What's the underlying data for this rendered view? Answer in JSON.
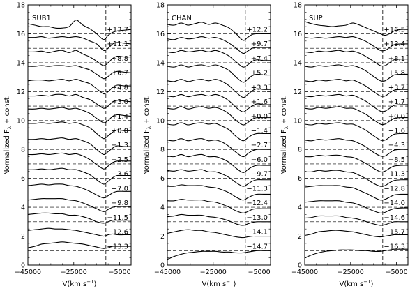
{
  "chart_data": [
    {
      "type": "line",
      "panel_label": "SUB1",
      "xlabel_prefix": "V(km s",
      "xlabel_exp": "−1",
      "xlabel_suffix": ")",
      "ylabel_main": "Normalized F",
      "ylabel_sub": "λ",
      "ylabel_suffix": " + const.",
      "xlim": [
        -45000,
        0
      ],
      "ylim": [
        0,
        18
      ],
      "x_ticks": [
        -45000,
        -25000,
        -5000
      ],
      "x_tick_labels": [
        "−45000",
        "−25000",
        "−5000"
      ],
      "y_ticks": [
        0,
        2,
        4,
        6,
        8,
        10,
        12,
        14,
        16,
        18
      ],
      "y_tick_labels": [
        "0",
        "2",
        "4",
        "6",
        "8",
        "10",
        "12",
        "14",
        "16",
        "18"
      ],
      "vertical_dashed_line_x": -11000,
      "offsets": [
        16,
        15,
        14,
        13,
        12,
        11,
        10,
        9,
        8,
        7,
        6,
        5,
        4,
        3,
        2,
        1
      ],
      "epochs": [
        "+13.7",
        "+11.1",
        "+8.8",
        "+6.7",
        "+4.8",
        "+3.0",
        "+1.4",
        "+0.0",
        "−1.3",
        "−2.5",
        "−3.6",
        "−7.0",
        "−9.8",
        "−11.5",
        "−12.6",
        "−13.3"
      ],
      "x": [
        -45000,
        -42000,
        -39000,
        -36000,
        -33000,
        -30000,
        -27000,
        -24000,
        -21000,
        -18000,
        -15000,
        -12000,
        -10000,
        -8000,
        -6000,
        -3000,
        0
      ],
      "series_values": [
        [
          16.7,
          16.6,
          16.5,
          16.5,
          16.4,
          16.4,
          16.5,
          16.95,
          16.6,
          16.35,
          16.0,
          15.6,
          15.9,
          16.1,
          16.2,
          16.25,
          16.3
        ],
        [
          15.75,
          15.75,
          15.8,
          15.7,
          15.75,
          15.8,
          15.75,
          15.8,
          15.7,
          15.5,
          15.3,
          14.85,
          15.0,
          15.3,
          15.4,
          15.35,
          15.3
        ],
        [
          14.75,
          14.75,
          14.8,
          14.7,
          14.8,
          14.85,
          14.7,
          14.85,
          14.6,
          14.4,
          14.1,
          13.8,
          14.0,
          14.3,
          14.45,
          14.4,
          14.4
        ],
        [
          13.75,
          13.75,
          13.8,
          13.75,
          13.8,
          13.8,
          13.75,
          13.8,
          13.65,
          13.5,
          13.2,
          12.9,
          13.05,
          13.3,
          13.4,
          13.35,
          13.3
        ],
        [
          12.75,
          12.8,
          12.8,
          12.75,
          12.8,
          12.85,
          12.75,
          12.85,
          12.7,
          12.55,
          12.2,
          11.85,
          12.0,
          12.3,
          12.45,
          12.4,
          12.4
        ],
        [
          11.7,
          11.7,
          11.75,
          11.7,
          11.8,
          11.8,
          11.7,
          11.8,
          11.6,
          11.45,
          11.15,
          10.85,
          11.0,
          11.3,
          11.4,
          11.35,
          11.3
        ],
        [
          10.8,
          10.8,
          10.85,
          10.8,
          10.85,
          10.9,
          10.8,
          10.85,
          10.7,
          10.5,
          10.15,
          9.85,
          10.0,
          10.3,
          10.4,
          10.35,
          10.3
        ],
        [
          9.8,
          9.8,
          9.85,
          9.8,
          9.85,
          9.9,
          9.8,
          9.85,
          9.7,
          9.5,
          9.1,
          8.75,
          8.95,
          9.2,
          9.35,
          9.3,
          9.3
        ],
        [
          8.7,
          8.7,
          8.75,
          8.7,
          8.75,
          8.8,
          8.7,
          8.75,
          8.6,
          8.4,
          8.0,
          7.65,
          7.85,
          8.1,
          8.25,
          8.2,
          8.2
        ],
        [
          7.65,
          7.65,
          7.7,
          7.65,
          7.7,
          7.75,
          7.65,
          7.7,
          7.55,
          7.3,
          6.95,
          6.65,
          6.85,
          7.1,
          7.2,
          7.2,
          7.2
        ],
        [
          6.6,
          6.6,
          6.65,
          6.6,
          6.65,
          6.7,
          6.6,
          6.6,
          6.45,
          6.25,
          5.9,
          5.6,
          5.8,
          6.05,
          6.2,
          6.2,
          6.2
        ],
        [
          5.5,
          5.55,
          5.6,
          5.55,
          5.6,
          5.6,
          5.5,
          5.45,
          5.3,
          5.1,
          4.85,
          4.65,
          4.8,
          5.0,
          5.1,
          5.1,
          5.1
        ],
        [
          4.5,
          4.55,
          4.6,
          4.6,
          4.6,
          4.6,
          4.5,
          4.45,
          4.3,
          4.1,
          3.9,
          3.7,
          3.85,
          4.0,
          4.05,
          4.05,
          4.05
        ],
        [
          3.5,
          3.55,
          3.6,
          3.6,
          3.55,
          3.55,
          3.45,
          3.45,
          3.35,
          3.2,
          3.0,
          2.9,
          3.0,
          3.1,
          3.1,
          3.1,
          3.1
        ],
        [
          2.4,
          2.45,
          2.5,
          2.55,
          2.5,
          2.5,
          2.45,
          2.4,
          2.3,
          2.2,
          2.1,
          2.0,
          2.1,
          2.15,
          2.1,
          2.1,
          2.1
        ],
        [
          1.2,
          1.3,
          1.45,
          1.5,
          1.55,
          1.6,
          1.55,
          1.5,
          1.45,
          1.35,
          1.25,
          1.15,
          1.2,
          1.3,
          1.3,
          1.3,
          1.3
        ]
      ]
    },
    {
      "type": "line",
      "panel_label": "CHAN",
      "xlabel_prefix": "V(km s",
      "xlabel_exp": "−1",
      "xlabel_suffix": ")",
      "ylabel_main": "Normalized F",
      "ylabel_sub": "λ",
      "ylabel_suffix": " + const.",
      "xlim": [
        -45000,
        0
      ],
      "ylim": [
        0,
        18
      ],
      "x_ticks": [
        -45000,
        -25000,
        -5000
      ],
      "x_tick_labels": [
        "−45000",
        "−25000",
        "−5000"
      ],
      "y_ticks": [
        0,
        2,
        4,
        6,
        8,
        10,
        12,
        14,
        16,
        18
      ],
      "y_tick_labels": [
        "0",
        "2",
        "4",
        "6",
        "8",
        "10",
        "12",
        "14",
        "16",
        "18"
      ],
      "vertical_dashed_line_x": -11000,
      "offsets": [
        16,
        15,
        14,
        13,
        12,
        11,
        10,
        9,
        8,
        7,
        6,
        5,
        4,
        3,
        2,
        1
      ],
      "epochs": [
        "+12.2",
        "+9.7",
        "+7.4",
        "+5.2",
        "+3.3",
        "+1.6",
        "+0.0",
        "−1.4",
        "−2.7",
        "−6.0",
        "−9.7",
        "−11.3",
        "−12.4",
        "−13.0",
        "−14.1",
        "−14.7"
      ],
      "x": [
        -45000,
        -42000,
        -39000,
        -36000,
        -33000,
        -30000,
        -27000,
        -24000,
        -21000,
        -18000,
        -15000,
        -12000,
        -10000,
        -8000,
        -6000,
        -3000,
        0
      ],
      "series_values": [
        [
          16.65,
          16.6,
          16.75,
          16.6,
          16.7,
          16.8,
          16.65,
          16.75,
          16.6,
          16.4,
          16.0,
          15.55,
          15.75,
          15.95,
          16.0,
          16.0,
          16.0
        ],
        [
          15.65,
          15.6,
          15.75,
          15.65,
          15.7,
          15.8,
          15.7,
          15.75,
          15.6,
          15.35,
          15.0,
          14.65,
          14.8,
          15.0,
          15.05,
          15.05,
          15.05
        ],
        [
          14.75,
          14.7,
          14.85,
          14.75,
          14.8,
          14.85,
          14.75,
          14.85,
          14.7,
          14.45,
          14.05,
          13.7,
          13.85,
          14.1,
          14.2,
          14.15,
          14.15
        ],
        [
          13.75,
          13.7,
          13.85,
          13.7,
          13.8,
          13.85,
          13.75,
          13.85,
          13.7,
          13.45,
          13.0,
          12.65,
          12.85,
          13.1,
          13.2,
          13.15,
          13.15
        ],
        [
          12.75,
          12.7,
          12.85,
          12.7,
          12.8,
          12.85,
          12.75,
          12.85,
          12.7,
          12.4,
          11.95,
          11.6,
          11.8,
          12.05,
          12.2,
          12.15,
          12.15
        ],
        [
          11.7,
          11.65,
          11.8,
          11.65,
          11.75,
          11.8,
          11.7,
          11.8,
          11.65,
          11.35,
          10.9,
          10.6,
          10.8,
          11.0,
          11.15,
          11.1,
          11.1
        ],
        [
          10.85,
          10.8,
          10.95,
          10.8,
          10.9,
          10.95,
          10.85,
          10.9,
          10.75,
          10.45,
          10.0,
          9.7,
          9.85,
          10.1,
          10.2,
          10.2,
          10.2
        ],
        [
          9.75,
          9.7,
          9.85,
          9.7,
          9.8,
          9.85,
          9.75,
          9.8,
          9.6,
          9.35,
          8.9,
          8.6,
          8.8,
          9.0,
          9.1,
          9.1,
          9.1
        ],
        [
          8.65,
          8.6,
          8.75,
          8.6,
          8.7,
          8.75,
          8.6,
          8.65,
          8.5,
          8.2,
          7.8,
          7.5,
          7.7,
          7.9,
          8.0,
          8.0,
          8.0
        ],
        [
          7.55,
          7.5,
          7.65,
          7.5,
          7.6,
          7.65,
          7.5,
          7.5,
          7.35,
          7.1,
          6.7,
          6.4,
          6.6,
          6.8,
          6.9,
          6.9,
          6.9
        ],
        [
          6.55,
          6.5,
          6.6,
          6.5,
          6.55,
          6.6,
          6.45,
          6.45,
          6.3,
          6.05,
          5.7,
          5.45,
          5.6,
          5.8,
          5.9,
          5.9,
          5.9
        ],
        [
          5.45,
          5.45,
          5.55,
          5.5,
          5.5,
          5.5,
          5.4,
          5.35,
          5.2,
          5.0,
          4.7,
          4.5,
          4.65,
          4.8,
          4.9,
          4.9,
          4.9
        ],
        [
          4.45,
          4.45,
          4.55,
          4.5,
          4.5,
          4.5,
          4.4,
          4.35,
          4.2,
          4.0,
          3.75,
          3.6,
          3.7,
          3.85,
          3.9,
          3.9,
          3.9
        ],
        [
          3.35,
          3.4,
          3.5,
          3.45,
          3.45,
          3.45,
          3.35,
          3.3,
          3.2,
          3.05,
          2.85,
          2.75,
          2.85,
          2.95,
          3.0,
          3.0,
          3.0
        ],
        [
          2.2,
          2.3,
          2.4,
          2.45,
          2.4,
          2.4,
          2.3,
          2.25,
          2.15,
          2.05,
          1.95,
          1.9,
          1.95,
          2.0,
          2.0,
          2.0,
          2.0
        ],
        [
          0.4,
          0.6,
          0.75,
          0.85,
          0.9,
          0.95,
          0.95,
          0.95,
          0.9,
          0.9,
          0.85,
          0.85,
          0.9,
          0.95,
          1.0,
          1.0,
          1.0
        ]
      ]
    },
    {
      "type": "line",
      "panel_label": "SUP",
      "xlabel_prefix": "V(km s",
      "xlabel_exp": "−1",
      "xlabel_suffix": ")",
      "ylabel_main": "Normalized F",
      "ylabel_sub": "λ",
      "ylabel_suffix": " + const.",
      "xlim": [
        -45000,
        0
      ],
      "ylim": [
        0,
        18
      ],
      "x_ticks": [
        -45000,
        -25000,
        -5000
      ],
      "x_tick_labels": [
        "−45000",
        "−25000",
        "−5000"
      ],
      "y_ticks": [
        0,
        2,
        4,
        6,
        8,
        10,
        12,
        14,
        16,
        18
      ],
      "y_tick_labels": [
        "0",
        "2",
        "4",
        "6",
        "8",
        "10",
        "12",
        "14",
        "16",
        "18"
      ],
      "vertical_dashed_line_x": -11000,
      "offsets": [
        16,
        15,
        14,
        13,
        12,
        11,
        10,
        9,
        8,
        7,
        6,
        5,
        4,
        3,
        2,
        1
      ],
      "epochs": [
        "+16.5",
        "+13.4",
        "+8.1",
        "+5.8",
        "+3.7",
        "+1.7",
        "+0.0",
        "−1.6",
        "−4.3",
        "−8.5",
        "−11.3",
        "−12.8",
        "−14.0",
        "−14.6",
        "−15.7",
        "−16.3"
      ],
      "x": [
        -45000,
        -42000,
        -39000,
        -36000,
        -33000,
        -30000,
        -27000,
        -24000,
        -21000,
        -18000,
        -15000,
        -12000,
        -10000,
        -8000,
        -6000,
        -3000,
        0
      ],
      "series_values": [
        [
          16.85,
          16.7,
          16.6,
          16.55,
          16.5,
          16.55,
          16.6,
          16.75,
          16.6,
          16.4,
          16.2,
          16.0,
          15.9,
          16.0,
          16.2,
          16.3,
          16.3
        ],
        [
          15.75,
          15.7,
          15.75,
          15.7,
          15.75,
          15.8,
          15.75,
          15.8,
          15.65,
          15.45,
          15.15,
          14.85,
          14.85,
          15.05,
          15.25,
          15.3,
          15.3
        ],
        [
          14.75,
          14.7,
          14.8,
          14.75,
          14.8,
          14.85,
          14.75,
          14.8,
          14.65,
          14.4,
          14.1,
          13.8,
          13.8,
          14.0,
          14.2,
          14.25,
          14.25
        ],
        [
          13.75,
          13.7,
          13.8,
          13.75,
          13.8,
          13.85,
          13.75,
          13.8,
          13.65,
          13.4,
          13.05,
          12.75,
          12.75,
          12.95,
          13.15,
          13.2,
          13.2
        ],
        [
          12.75,
          12.7,
          12.8,
          12.75,
          12.8,
          12.85,
          12.75,
          12.8,
          12.6,
          12.35,
          12.0,
          11.7,
          11.7,
          11.9,
          12.1,
          12.15,
          12.15
        ],
        [
          11.7,
          11.65,
          11.75,
          11.7,
          11.75,
          11.8,
          11.7,
          11.75,
          11.55,
          11.3,
          10.95,
          10.65,
          10.65,
          10.85,
          11.05,
          11.1,
          11.1
        ],
        [
          10.85,
          10.8,
          10.9,
          10.85,
          10.9,
          10.95,
          10.85,
          10.85,
          10.65,
          10.4,
          10.05,
          9.75,
          9.75,
          9.95,
          10.15,
          10.2,
          10.2
        ],
        [
          9.75,
          9.7,
          9.8,
          9.75,
          9.8,
          9.85,
          9.75,
          9.75,
          9.55,
          9.3,
          8.95,
          8.65,
          8.65,
          8.85,
          9.05,
          9.1,
          9.1
        ],
        [
          8.65,
          8.6,
          8.7,
          8.65,
          8.7,
          8.75,
          8.65,
          8.6,
          8.4,
          8.15,
          7.8,
          7.55,
          7.55,
          7.75,
          7.95,
          8.0,
          8.0
        ],
        [
          7.5,
          7.5,
          7.6,
          7.55,
          7.6,
          7.6,
          7.5,
          7.45,
          7.25,
          7.0,
          6.7,
          6.45,
          6.5,
          6.7,
          6.85,
          6.9,
          6.9
        ],
        [
          6.45,
          6.45,
          6.55,
          6.5,
          6.55,
          6.55,
          6.45,
          6.4,
          6.2,
          5.95,
          5.65,
          5.45,
          5.5,
          5.7,
          5.85,
          5.9,
          5.9
        ],
        [
          5.4,
          5.45,
          5.5,
          5.5,
          5.5,
          5.5,
          5.4,
          5.35,
          5.15,
          4.95,
          4.7,
          4.5,
          4.55,
          4.7,
          4.85,
          4.9,
          4.9
        ],
        [
          4.35,
          4.4,
          4.45,
          4.45,
          4.45,
          4.45,
          4.35,
          4.3,
          4.15,
          3.95,
          3.75,
          3.6,
          3.65,
          3.8,
          3.9,
          3.95,
          3.95
        ],
        [
          3.25,
          3.3,
          3.4,
          3.4,
          3.4,
          3.4,
          3.3,
          3.25,
          3.15,
          3.0,
          2.85,
          2.75,
          2.8,
          2.9,
          3.0,
          3.0,
          3.0
        ],
        [
          2.05,
          2.15,
          2.3,
          2.35,
          2.4,
          2.4,
          2.35,
          2.3,
          2.2,
          2.1,
          2.0,
          1.95,
          2.0,
          2.05,
          2.1,
          2.1,
          2.1
        ],
        [
          0.5,
          0.7,
          0.85,
          0.95,
          1.0,
          1.05,
          1.05,
          1.05,
          1.0,
          1.0,
          0.95,
          0.95,
          1.0,
          1.05,
          1.1,
          1.1,
          1.1
        ]
      ]
    }
  ]
}
